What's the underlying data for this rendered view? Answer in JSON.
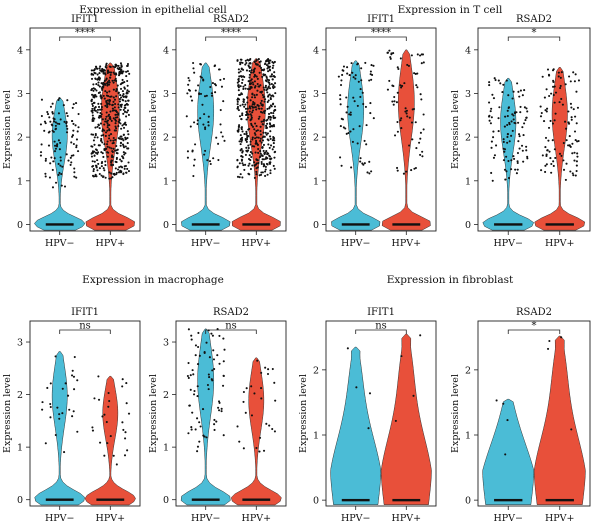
{
  "groups": [
    {
      "title": "Expression in epithelial cell",
      "ylabel": "Expression level",
      "categories": [
        "HPV−",
        "HPV+"
      ],
      "panels": [
        {
          "gene": "IFIT1",
          "significance": "****",
          "ylim": [
            -0.15,
            4.5
          ],
          "yticks": [
            0,
            1,
            2,
            3,
            4
          ],
          "ymax": [
            2.9,
            3.7
          ],
          "density": [
            "high",
            "very-high"
          ]
        },
        {
          "gene": "RSAD2",
          "significance": "****",
          "ylim": [
            -0.15,
            4.5
          ],
          "yticks": [
            0,
            1,
            2,
            3,
            4
          ],
          "ymax": [
            3.7,
            3.8
          ],
          "density": [
            "medium",
            "very-high"
          ]
        }
      ]
    },
    {
      "title": "Expression in T cell",
      "ylabel": "Expression level",
      "categories": [
        "HPV−",
        "HPV+"
      ],
      "panels": [
        {
          "gene": "IFIT1",
          "significance": "****",
          "ylim": [
            -0.15,
            4.5
          ],
          "yticks": [
            0,
            1,
            2,
            3,
            4
          ],
          "ymax": [
            3.75,
            4.0
          ],
          "density": [
            "medium",
            "medium"
          ]
        },
        {
          "gene": "RSAD2",
          "significance": "*",
          "ylim": [
            -0.15,
            4.5
          ],
          "yticks": [
            0,
            1,
            2,
            3,
            4
          ],
          "ymax": [
            3.35,
            3.6
          ],
          "density": [
            "high",
            "high"
          ]
        }
      ]
    },
    {
      "title": "Expression in macrophage",
      "ylabel": "Expression level",
      "categories": [
        "HPV−",
        "HPV+"
      ],
      "panels": [
        {
          "gene": "IFIT1",
          "significance": "ns",
          "ylim": [
            -0.12,
            3.4
          ],
          "yticks": [
            0,
            1,
            2,
            3
          ],
          "ymax": [
            2.82,
            2.35
          ],
          "density": [
            "low",
            "low"
          ]
        },
        {
          "gene": "RSAD2",
          "significance": "ns",
          "ylim": [
            -0.12,
            3.4
          ],
          "yticks": [
            0,
            1,
            2,
            3
          ],
          "ymax": [
            3.25,
            2.7
          ],
          "density": [
            "medium",
            "low"
          ]
        }
      ]
    },
    {
      "title": "Expression in fibroblast",
      "ylabel": "Expression level",
      "categories": [
        "HPV−",
        "HPV+"
      ],
      "panels": [
        {
          "gene": "IFIT1",
          "significance": "ns",
          "ylim": [
            -0.09,
            2.75
          ],
          "yticks": [
            0,
            1,
            2
          ],
          "ymax": [
            2.35,
            2.55
          ],
          "density": [
            "sparse",
            "sparse"
          ]
        },
        {
          "gene": "RSAD2",
          "significance": "*",
          "ylim": [
            -0.09,
            2.75
          ],
          "yticks": [
            0,
            1,
            2
          ],
          "ymax": [
            1.55,
            2.52
          ],
          "density": [
            "sparse",
            "sparse"
          ]
        }
      ]
    }
  ],
  "chart_data": {
    "type": "violin",
    "note_series": [
      "HPV−",
      "HPV+"
    ],
    "colors": {
      "HPV−": "#4bbcd6",
      "HPV+": "#e8503a",
      "points": "#111111",
      "outline": "#222222"
    }
  }
}
